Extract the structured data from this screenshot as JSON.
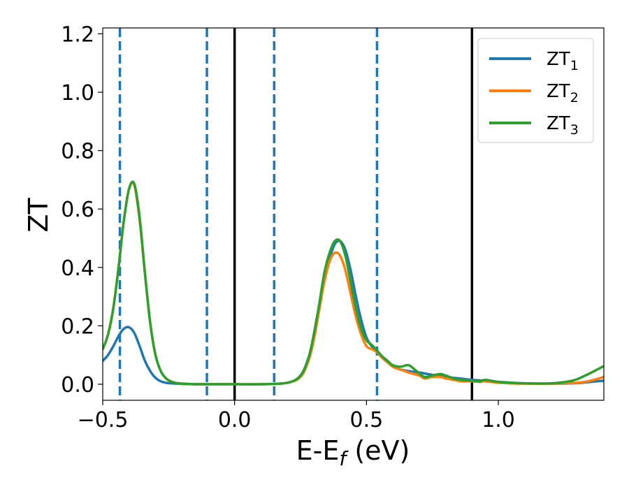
{
  "chart_data": {
    "type": "line",
    "xlabel_main": "E-E",
    "xlabel_sub": "f",
    "xlabel_unit": " (eV)",
    "ylabel": "ZT",
    "xlim": [
      -0.5,
      1.4
    ],
    "ylim": [
      -0.055,
      1.22
    ],
    "xticks": [
      -0.5,
      0.0,
      0.5,
      1.0
    ],
    "xtick_labels": [
      "−0.5",
      "0.0",
      "0.5",
      "1.0"
    ],
    "yticks": [
      0.0,
      0.2,
      0.4,
      0.6,
      0.8,
      1.0,
      1.2
    ],
    "ytick_labels": [
      "0.0",
      "0.2",
      "0.4",
      "0.6",
      "0.8",
      "1.0",
      "1.2"
    ],
    "grid": false,
    "legend_position": "top-right",
    "colors": {
      "ZT1": "#1f77b4",
      "ZT2": "#ff7f0e",
      "ZT3": "#2ca02c",
      "solid_ref": "#000000",
      "dashed_ref": "#1f77b4"
    },
    "vlines_solid": [
      0.0,
      0.9
    ],
    "vlines_dashed": [
      -0.435,
      -0.105,
      0.15,
      0.54
    ],
    "series": [
      {
        "name": "ZT",
        "sub": "1",
        "key": "ZT1",
        "x": [
          -0.5,
          -0.48,
          -0.46,
          -0.44,
          -0.42,
          -0.4,
          -0.38,
          -0.36,
          -0.34,
          -0.32,
          -0.3,
          -0.28,
          -0.26,
          -0.24,
          -0.22,
          -0.2,
          -0.15,
          -0.1,
          0.0,
          0.1,
          0.2,
          0.25,
          0.28,
          0.3,
          0.32,
          0.34,
          0.36,
          0.38,
          0.4,
          0.42,
          0.44,
          0.46,
          0.48,
          0.5,
          0.52,
          0.54,
          0.56,
          0.58,
          0.6,
          0.63,
          0.66,
          0.7,
          0.75,
          0.8,
          0.85,
          0.9,
          0.95,
          1.0,
          1.05,
          1.1,
          1.2,
          1.3,
          1.35,
          1.4
        ],
        "y": [
          0.08,
          0.1,
          0.13,
          0.165,
          0.19,
          0.195,
          0.175,
          0.13,
          0.08,
          0.045,
          0.022,
          0.01,
          0.005,
          0.003,
          0.002,
          0.001,
          0.0,
          0.0,
          0.0,
          0.0,
          0.005,
          0.03,
          0.09,
          0.16,
          0.26,
          0.36,
          0.43,
          0.48,
          0.49,
          0.46,
          0.39,
          0.3,
          0.22,
          0.16,
          0.13,
          0.11,
          0.09,
          0.075,
          0.06,
          0.05,
          0.045,
          0.04,
          0.032,
          0.025,
          0.02,
          0.015,
          0.012,
          0.008,
          0.005,
          0.003,
          0.002,
          0.004,
          0.008,
          0.012
        ]
      },
      {
        "name": "ZT",
        "sub": "2",
        "key": "ZT2",
        "x": [
          -0.5,
          -0.48,
          -0.46,
          -0.44,
          -0.42,
          -0.4,
          -0.38,
          -0.36,
          -0.34,
          -0.32,
          -0.3,
          -0.28,
          -0.26,
          -0.24,
          -0.22,
          -0.2,
          -0.15,
          -0.1,
          0.0,
          0.1,
          0.2,
          0.25,
          0.28,
          0.3,
          0.32,
          0.34,
          0.36,
          0.38,
          0.4,
          0.42,
          0.44,
          0.46,
          0.48,
          0.5,
          0.52,
          0.54,
          0.56,
          0.58,
          0.6,
          0.63,
          0.66,
          0.7,
          0.72,
          0.75,
          0.78,
          0.8,
          0.83,
          0.86,
          0.9,
          0.93,
          0.95,
          1.0,
          1.05,
          1.1,
          1.2,
          1.3,
          1.35,
          1.4
        ],
        "y": [
          0.12,
          0.17,
          0.26,
          0.4,
          0.56,
          0.67,
          0.68,
          0.56,
          0.38,
          0.21,
          0.1,
          0.045,
          0.02,
          0.009,
          0.004,
          0.002,
          0.0,
          0.0,
          0.0,
          0.0,
          0.005,
          0.025,
          0.08,
          0.15,
          0.25,
          0.35,
          0.42,
          0.45,
          0.44,
          0.39,
          0.31,
          0.23,
          0.17,
          0.13,
          0.12,
          0.11,
          0.09,
          0.075,
          0.06,
          0.05,
          0.04,
          0.03,
          0.02,
          0.025,
          0.025,
          0.02,
          0.015,
          0.01,
          0.01,
          0.008,
          0.01,
          0.005,
          0.003,
          0.002,
          0.002,
          0.005,
          0.012,
          0.025
        ]
      },
      {
        "name": "ZT",
        "sub": "3",
        "key": "ZT3",
        "x": [
          -0.5,
          -0.48,
          -0.46,
          -0.44,
          -0.42,
          -0.4,
          -0.38,
          -0.36,
          -0.34,
          -0.32,
          -0.3,
          -0.28,
          -0.26,
          -0.24,
          -0.22,
          -0.2,
          -0.15,
          -0.1,
          0.0,
          0.1,
          0.2,
          0.25,
          0.28,
          0.3,
          0.32,
          0.34,
          0.36,
          0.38,
          0.4,
          0.42,
          0.44,
          0.46,
          0.48,
          0.5,
          0.52,
          0.54,
          0.56,
          0.58,
          0.6,
          0.63,
          0.66,
          0.69,
          0.72,
          0.75,
          0.78,
          0.8,
          0.83,
          0.86,
          0.9,
          0.93,
          0.95,
          1.0,
          1.05,
          1.1,
          1.2,
          1.28,
          1.33,
          1.4
        ],
        "y": [
          0.12,
          0.17,
          0.26,
          0.4,
          0.56,
          0.67,
          0.685,
          0.57,
          0.38,
          0.21,
          0.1,
          0.045,
          0.02,
          0.009,
          0.004,
          0.002,
          0.0,
          0.0,
          0.0,
          0.0,
          0.005,
          0.03,
          0.09,
          0.17,
          0.27,
          0.38,
          0.45,
          0.49,
          0.49,
          0.44,
          0.35,
          0.26,
          0.19,
          0.15,
          0.135,
          0.115,
          0.095,
          0.08,
          0.065,
          0.06,
          0.065,
          0.045,
          0.025,
          0.03,
          0.035,
          0.03,
          0.02,
          0.015,
          0.012,
          0.01,
          0.015,
          0.008,
          0.005,
          0.003,
          0.003,
          0.012,
          0.03,
          0.062
        ]
      }
    ]
  }
}
